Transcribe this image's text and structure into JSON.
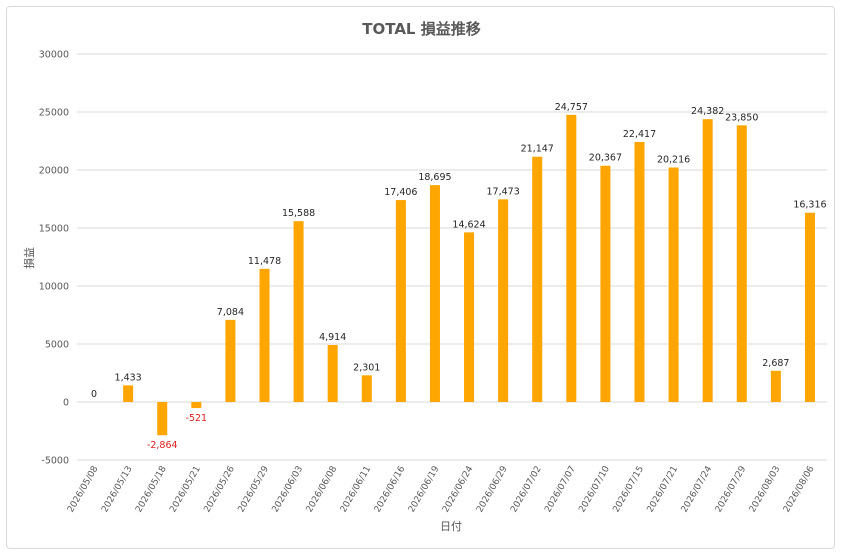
{
  "chart_data": {
    "type": "bar",
    "title": "TOTAL 損益推移",
    "xlabel": "日付",
    "ylabel": "損益",
    "ylim": [
      -5000,
      30000
    ],
    "y_ticks": [
      "-5000",
      "0",
      "5000",
      "10000",
      "15000",
      "20000",
      "25000",
      "30000"
    ],
    "y_tick_values": [
      -5000,
      0,
      5000,
      10000,
      15000,
      20000,
      25000,
      30000
    ],
    "grid": true,
    "legend": "none",
    "colors": {
      "bar": "#FFA500",
      "negative_label": "#E02020",
      "grid": "#D9D9D9"
    },
    "categories": [
      "2026/05/08",
      "2026/05/13",
      "2026/05/18",
      "2026/05/21",
      "2026/05/26",
      "2026/05/29",
      "2026/06/03",
      "2026/06/08",
      "2026/06/11",
      "2026/06/16",
      "2026/06/19",
      "2026/06/24",
      "2026/06/29",
      "2026/07/02",
      "2026/07/07",
      "2026/07/10",
      "2026/07/15",
      "2026/07/21",
      "2026/07/24",
      "2026/07/29",
      "2026/08/03",
      "2026/08/06"
    ],
    "values": [
      0,
      1433,
      -2864,
      -521,
      7084,
      11478,
      15588,
      4914,
      2301,
      17406,
      18695,
      14624,
      17473,
      21147,
      24757,
      20367,
      22417,
      20216,
      24382,
      23850,
      2687,
      16316
    ],
    "labels": [
      "0",
      "1,433",
      "-2,864",
      "-521",
      "7,084",
      "11,478",
      "15,588",
      "4,914",
      "2,301",
      "17,406",
      "18,695",
      "14,624",
      "17,473",
      "21,147",
      "24,757",
      "20,367",
      "22,417",
      "20,216",
      "24,382",
      "23,850",
      "2,687",
      "16,316"
    ]
  }
}
